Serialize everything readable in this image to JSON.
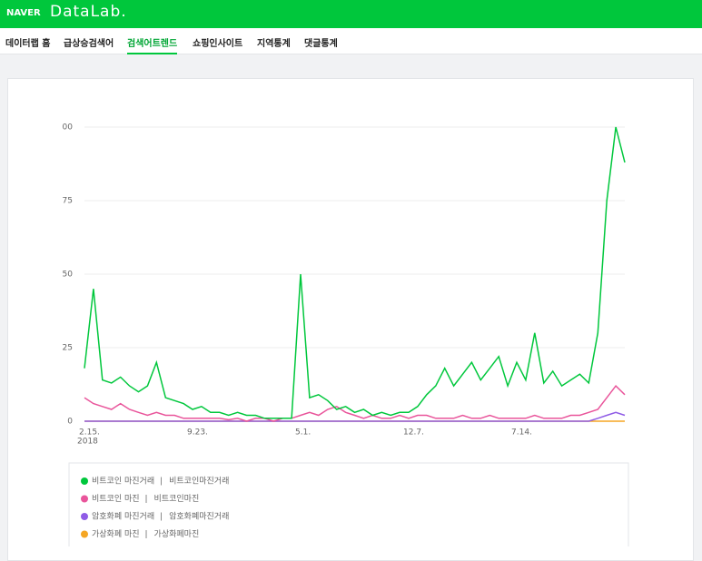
{
  "header": {
    "brand": "NAVER",
    "product": "DataLab."
  },
  "nav": {
    "items": [
      "데이터랩 홈",
      "급상승검색어",
      "검색어트렌드",
      "쇼핑인사이트",
      "지역통계",
      "댓글통계"
    ],
    "active": 2
  },
  "chart_data": {
    "type": "line",
    "categories": [
      "2.15.",
      null,
      null,
      null,
      null,
      null,
      null,
      null,
      null,
      null,
      null,
      null,
      "9.23.",
      null,
      null,
      null,
      null,
      null,
      null,
      null,
      null,
      null,
      null,
      null,
      "5.1.",
      null,
      null,
      null,
      null,
      null,
      null,
      null,
      null,
      null,
      null,
      null,
      "12.7.",
      null,
      null,
      null,
      null,
      null,
      null,
      null,
      null,
      null,
      null,
      null,
      "7.14.",
      null,
      null,
      null,
      null,
      null,
      null,
      null,
      null,
      null,
      null,
      null,
      null
    ],
    "first_tick_year": "2018",
    "ylim": [
      0,
      100
    ],
    "yticks": [
      0,
      25,
      50,
      75,
      {
        "value": 100,
        "label": "00"
      }
    ],
    "grid": true,
    "series": [
      {
        "name": "비트코인 마진거래",
        "keywords": "비트코인마진거래",
        "color": "#00c73c",
        "values": [
          18,
          45,
          14,
          13,
          15,
          12,
          10,
          12,
          20,
          8,
          7,
          6,
          4,
          5,
          3,
          3,
          2,
          3,
          2,
          2,
          1,
          1,
          1,
          1,
          50,
          8,
          9,
          7,
          4,
          5,
          3,
          4,
          2,
          3,
          2,
          3,
          3,
          5,
          9,
          12,
          18,
          12,
          16,
          20,
          14,
          18,
          22,
          12,
          20,
          14,
          30,
          13,
          17,
          12,
          14,
          16,
          13,
          30,
          75,
          100,
          88
        ]
      },
      {
        "name": "비트코인 마진",
        "keywords": "비트코인마진",
        "color": "#e9559b",
        "values": [
          8,
          6,
          5,
          4,
          6,
          4,
          3,
          2,
          3,
          2,
          2,
          1,
          1,
          1,
          1,
          1,
          0.5,
          1,
          0,
          1,
          1,
          0,
          1,
          1,
          2,
          3,
          2,
          4,
          5,
          3,
          2,
          1,
          2,
          1,
          1,
          2,
          1,
          2,
          2,
          1,
          1,
          1,
          2,
          1,
          1,
          2,
          1,
          1,
          1,
          1,
          2,
          1,
          1,
          1,
          2,
          2,
          3,
          4,
          8,
          12,
          9
        ]
      },
      {
        "name": "암호화폐 마진거래",
        "keywords": "암호화폐마진거래",
        "color": "#8f5ce6",
        "values": [
          0,
          0,
          0,
          0,
          0,
          0,
          0,
          0,
          0,
          0,
          0,
          0,
          0,
          0,
          0,
          0,
          0,
          0,
          0,
          0,
          0,
          0,
          0,
          0,
          0,
          0,
          0,
          0,
          0,
          0,
          0,
          0,
          0,
          0,
          0,
          0,
          0,
          0,
          0,
          0,
          0,
          0,
          0,
          0,
          0,
          0,
          0,
          0,
          0,
          0,
          0,
          0,
          0,
          0,
          0,
          0,
          0,
          1,
          2,
          3,
          2
        ]
      },
      {
        "name": "가상화폐 마진",
        "keywords": "가상화폐마진",
        "color": "#f5a623",
        "values": [
          0,
          0,
          0,
          0,
          0,
          0,
          0,
          0,
          0,
          0,
          0,
          0,
          0,
          0,
          0,
          0,
          0,
          0,
          0,
          0,
          0,
          0,
          0,
          0,
          0,
          0,
          0,
          0,
          0,
          0,
          0,
          0,
          0,
          0,
          0,
          0,
          0,
          0,
          0,
          0,
          0,
          0,
          0,
          0,
          0,
          0,
          0,
          0,
          0,
          0,
          0,
          0,
          0,
          0,
          0,
          0,
          0,
          0,
          0,
          0,
          0
        ]
      }
    ]
  }
}
